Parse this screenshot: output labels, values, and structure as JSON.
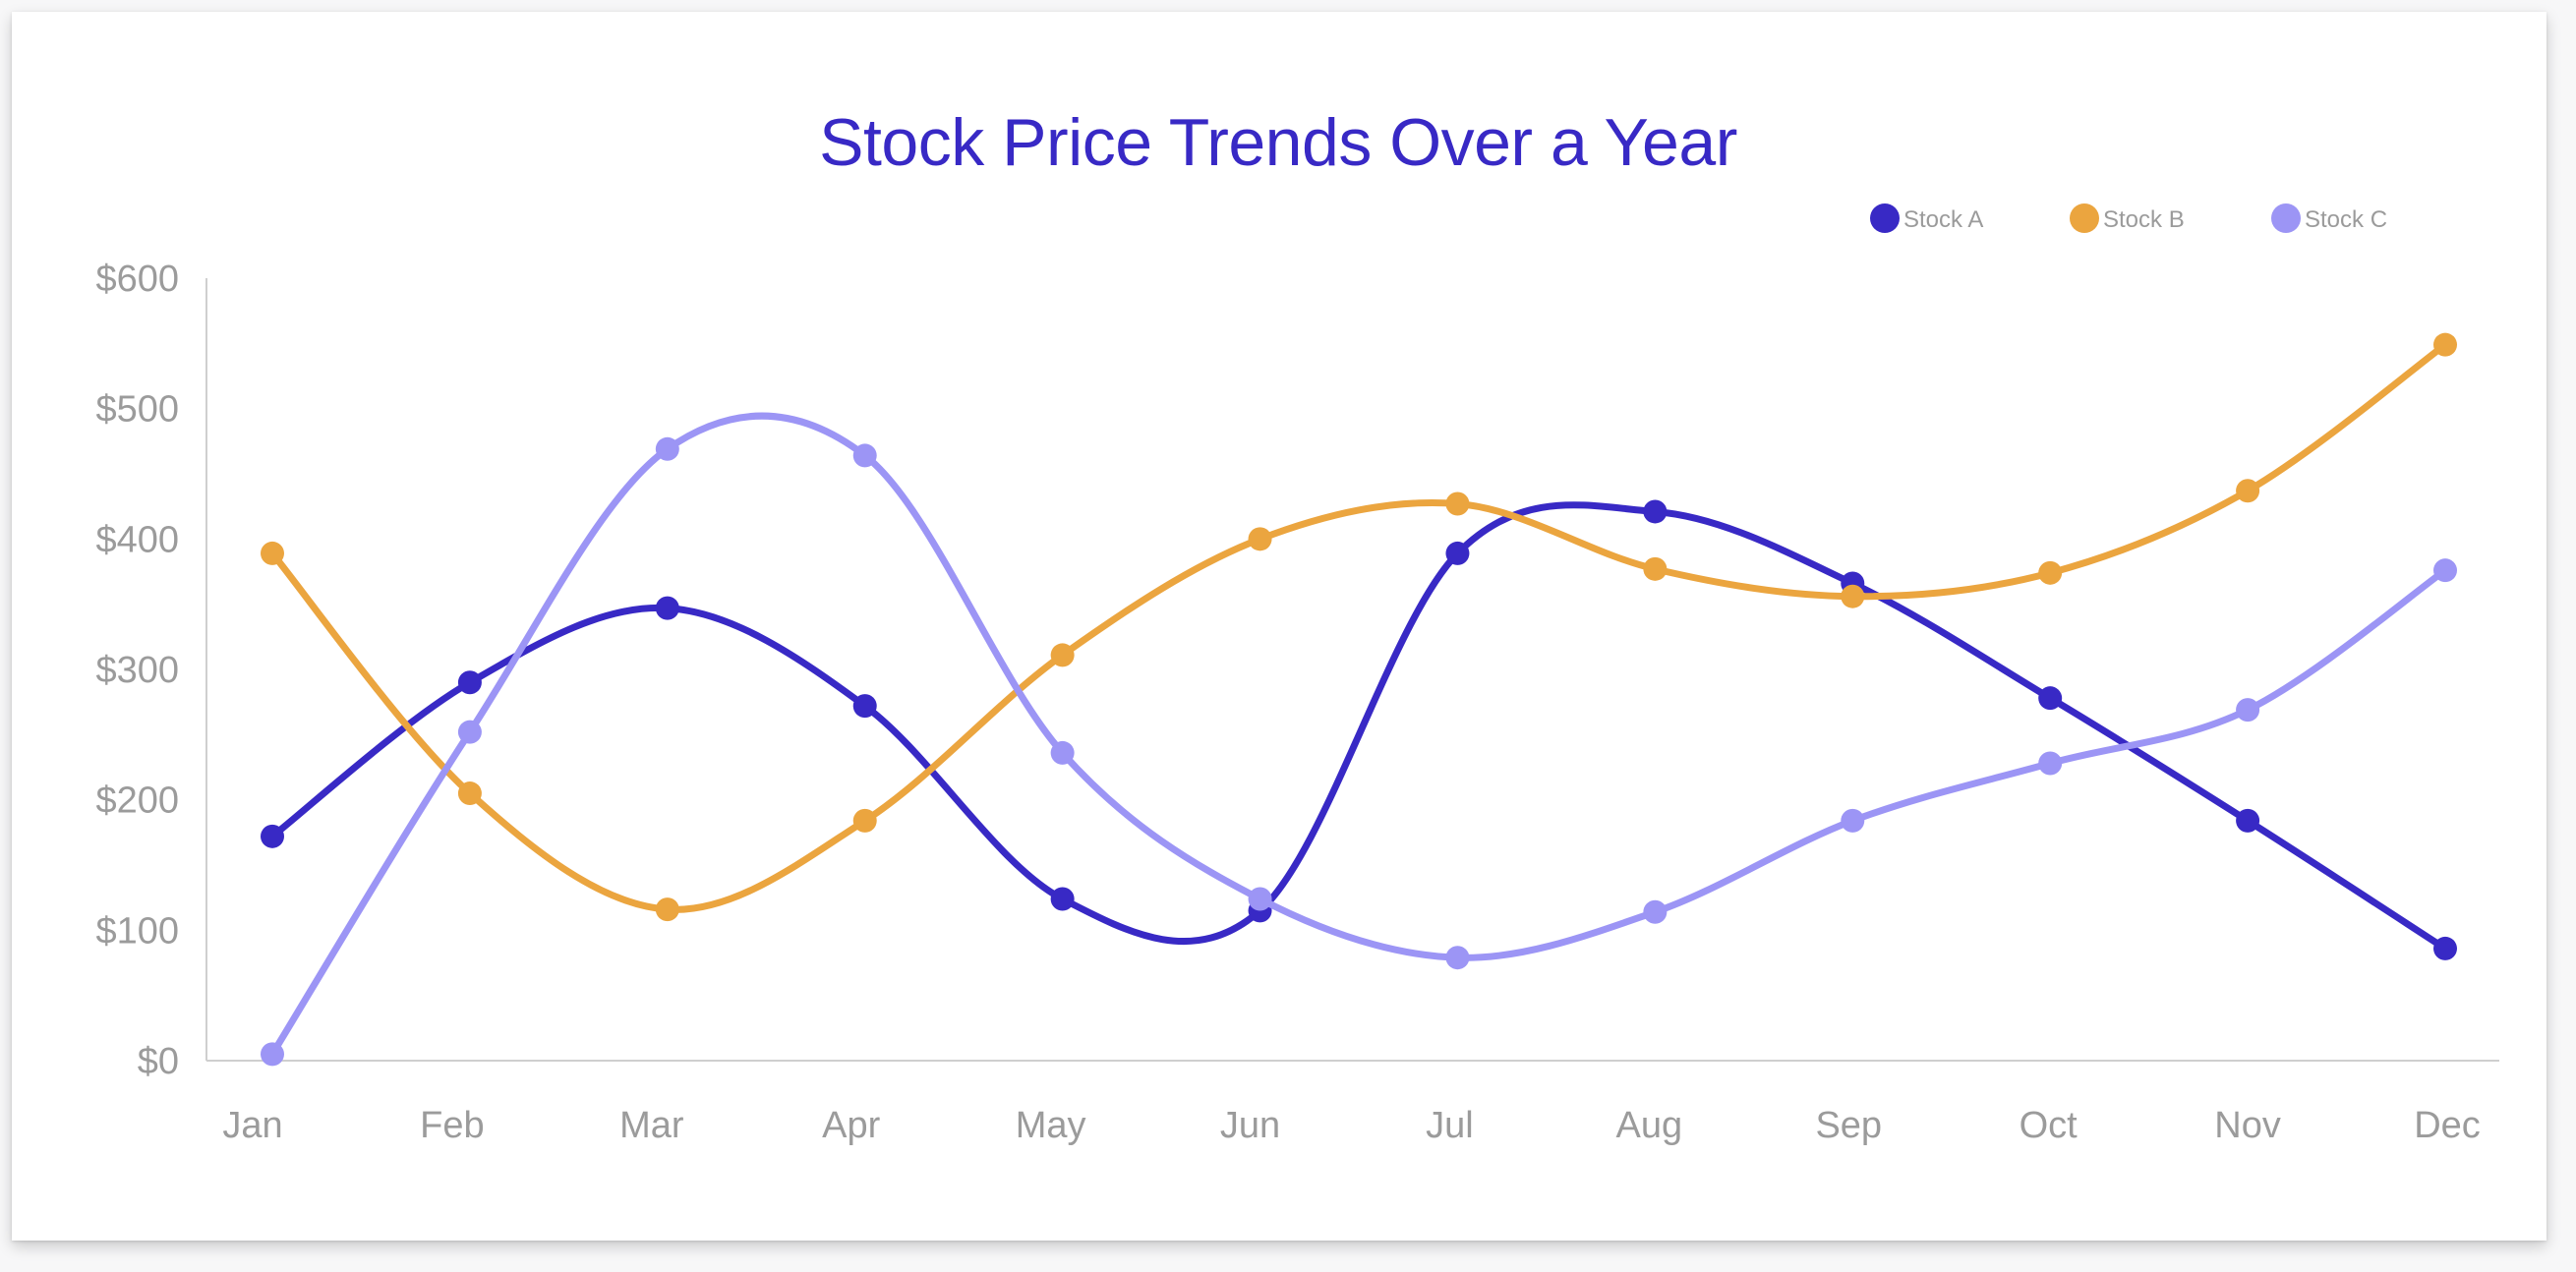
{
  "chart_data": {
    "type": "line",
    "title": "Stock Price Trends Over a Year",
    "xlabel": "",
    "ylabel": "",
    "categories": [
      "Jan",
      "Feb",
      "Mar",
      "Apr",
      "May",
      "Jun",
      "Jul",
      "Aug",
      "Sep",
      "Oct",
      "Nov",
      "Dec"
    ],
    "ylim": [
      0,
      600
    ],
    "yticks": [
      0,
      100,
      200,
      300,
      400,
      500,
      600
    ],
    "ytick_labels": [
      "$0",
      "$100",
      "$200",
      "$300",
      "$400",
      "$500",
      "$600"
    ],
    "grid": false,
    "legend_position": "top-right",
    "series": [
      {
        "name": "Stock A",
        "color": "#3829c5",
        "values": [
          172,
          290,
          347,
          272,
          124,
          115,
          389,
          421,
          366,
          278,
          184,
          86
        ]
      },
      {
        "name": "Stock B",
        "color": "#eba53f",
        "values": [
          389,
          205,
          116,
          184,
          311,
          400,
          427,
          377,
          356,
          374,
          437,
          549
        ]
      },
      {
        "name": "Stock C",
        "color": "#9c95f5",
        "values": [
          5,
          252,
          469,
          464,
          236,
          124,
          79,
          114,
          184,
          228,
          269,
          376
        ]
      }
    ]
  },
  "colors": {
    "title": "#3829c5",
    "axis": "#cfcfcf",
    "tick_text": "#9b9b9b"
  }
}
